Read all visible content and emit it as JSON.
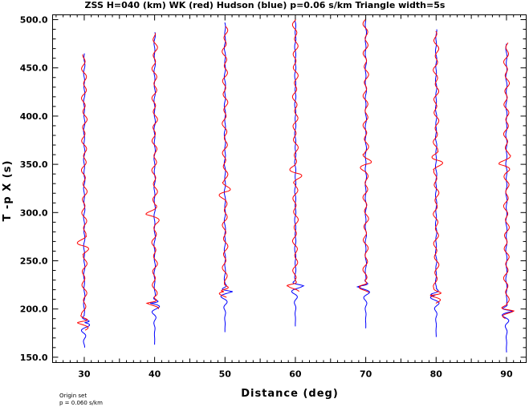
{
  "chart_data": {
    "type": "line",
    "title": "ZSS H=040 (km) WK (red) Hudson (blue) p=0.06 s/km Triangle width=5s",
    "xlabel": "Distance (deg)",
    "ylabel": "T -p X (s)",
    "xlim": [
      25.5,
      92.8
    ],
    "ylim": [
      144.5,
      505
    ],
    "x_ticks": [
      30,
      40,
      50,
      60,
      70,
      80,
      90
    ],
    "x_tick_labels": [
      "30",
      "40",
      "50",
      "60",
      "70",
      "80",
      "90"
    ],
    "y_ticks": [
      150,
      200,
      250,
      300,
      350,
      400,
      450,
      500
    ],
    "y_tick_labels": [
      "150.0",
      "200.0",
      "250.0",
      "300.0",
      "350.0",
      "400.0",
      "450.0",
      "500.0"
    ],
    "grid": false,
    "legend": "none",
    "series": [
      {
        "name": "WK",
        "color": "#ff0000",
        "traces": [
          {
            "distance": 30,
            "start": 464,
            "end": 178,
            "first_arrival": 186
          },
          {
            "distance": 40,
            "start": 486,
            "end": 200,
            "first_arrival": 206
          },
          {
            "distance": 50,
            "start": 493,
            "end": 212,
            "first_arrival": 218
          },
          {
            "distance": 60,
            "start": 500,
            "end": 218,
            "first_arrival": 224
          },
          {
            "distance": 70,
            "start": 500,
            "end": 217,
            "first_arrival": 223
          },
          {
            "distance": 80,
            "start": 488,
            "end": 206,
            "first_arrival": 214
          },
          {
            "distance": 90,
            "start": 476,
            "end": 190,
            "first_arrival": 198
          }
        ]
      },
      {
        "name": "Hudson",
        "color": "#0000ff",
        "traces": [
          {
            "distance": 30,
            "start": 465,
            "end": 160,
            "first_arrival": 186
          },
          {
            "distance": 40,
            "start": 487,
            "end": 163,
            "first_arrival": 206
          },
          {
            "distance": 50,
            "start": 497,
            "end": 176,
            "first_arrival": 218
          },
          {
            "distance": 60,
            "start": 499,
            "end": 182,
            "first_arrival": 224
          },
          {
            "distance": 70,
            "start": 499,
            "end": 180,
            "first_arrival": 223
          },
          {
            "distance": 80,
            "start": 490,
            "end": 171,
            "first_arrival": 214
          },
          {
            "distance": 90,
            "start": 475,
            "end": 155,
            "first_arrival": 198
          }
        ]
      }
    ],
    "annotations": [
      "Origin set",
      "p = 0.060 s/km"
    ]
  }
}
